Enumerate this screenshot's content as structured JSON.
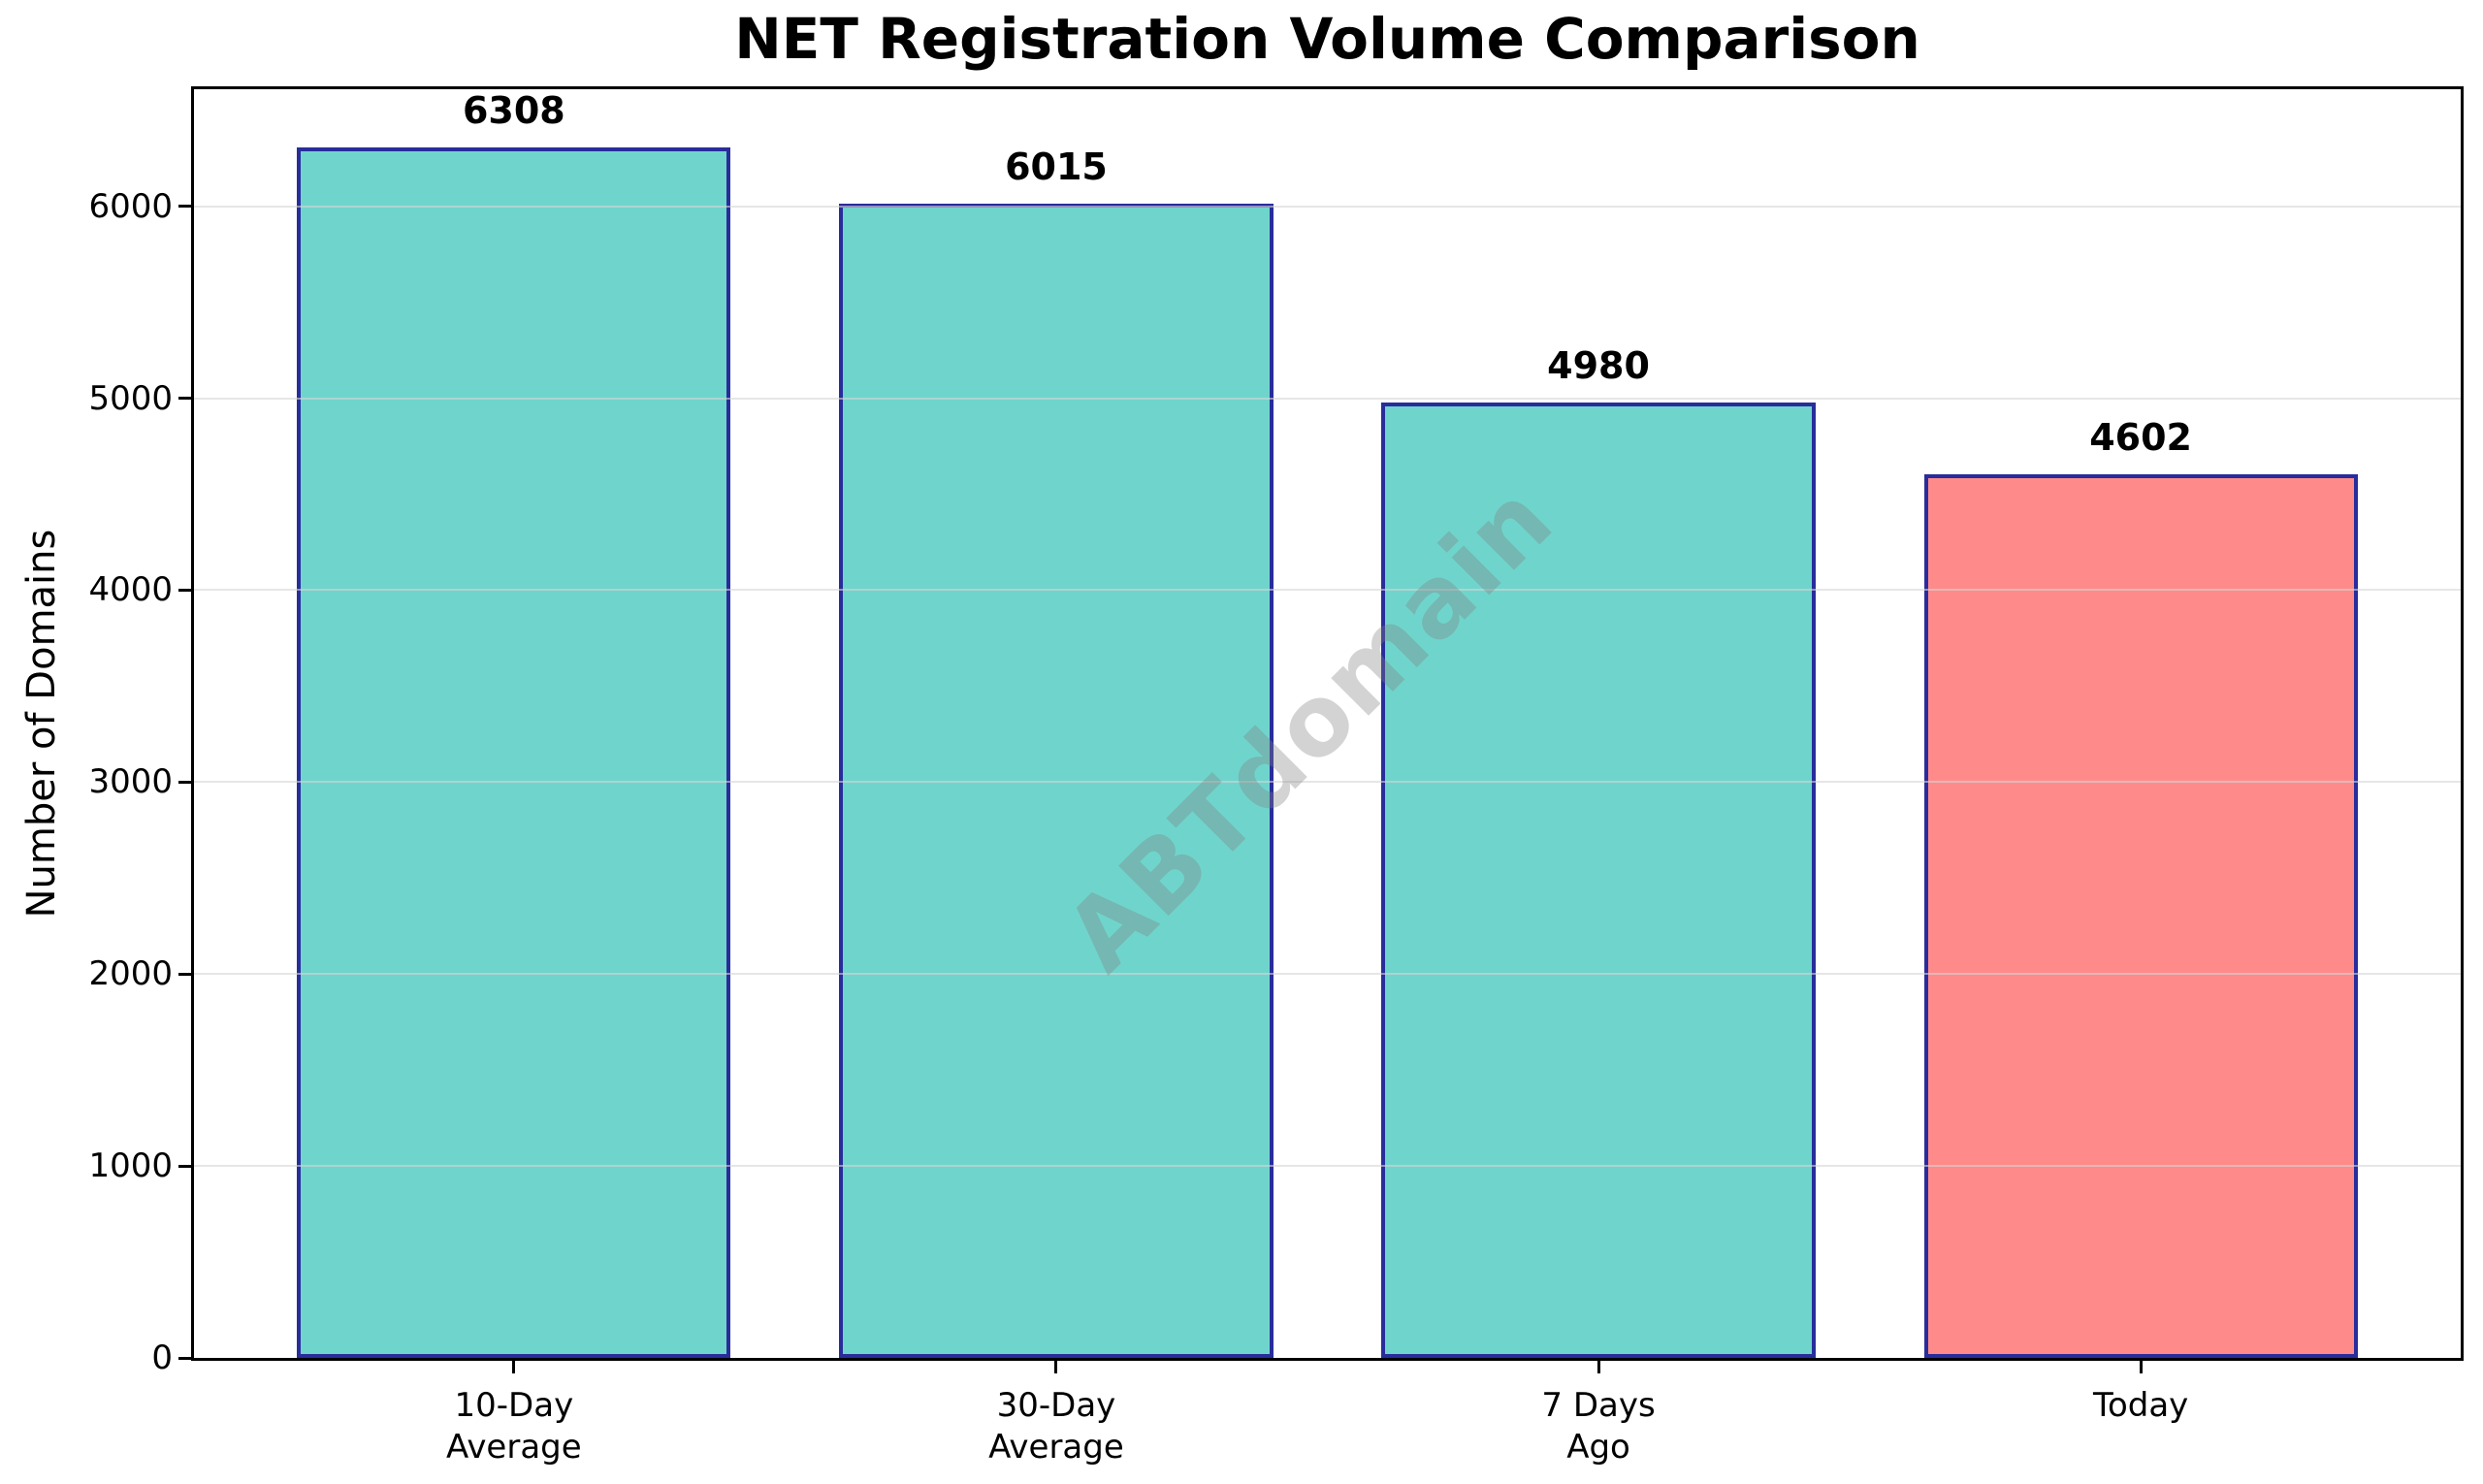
{
  "title": "NET Registration Volume Comparison",
  "y_axis_label": "Number of Domains",
  "watermark_text": "ABTdomain",
  "chart_data": {
    "type": "bar",
    "title": "NET Registration Volume Comparison",
    "categories": [
      "10-Day\nAverage",
      "30-Day\nAverage",
      "7 Days\nAgo",
      "Today"
    ],
    "values": [
      6308,
      6015,
      4980,
      4602
    ],
    "value_labels": [
      "6308",
      "6015",
      "4980",
      "4602"
    ],
    "xlabel": "",
    "ylabel": "Number of Domains",
    "yticks": [
      0,
      1000,
      2000,
      3000,
      4000,
      5000,
      6000
    ],
    "ylim": [
      0,
      6610
    ],
    "xlim": [
      -0.59,
      3.59
    ],
    "bar_unit_width": 0.8,
    "grid": "horizontal",
    "legend": "none",
    "colors": {
      "bar_fill_teal": "#6FD5CC",
      "bar_fill_salmon": "#FF8A8A",
      "bar_edge": "#282D9B",
      "background": "#FFFFFF",
      "text": "#000000",
      "watermark_gray": "#808080"
    },
    "bar_fills": [
      "#6FD5CC",
      "#6FD5CC",
      "#6FD5CC",
      "#FF8A8A"
    ],
    "watermark": "ABTdomain"
  }
}
